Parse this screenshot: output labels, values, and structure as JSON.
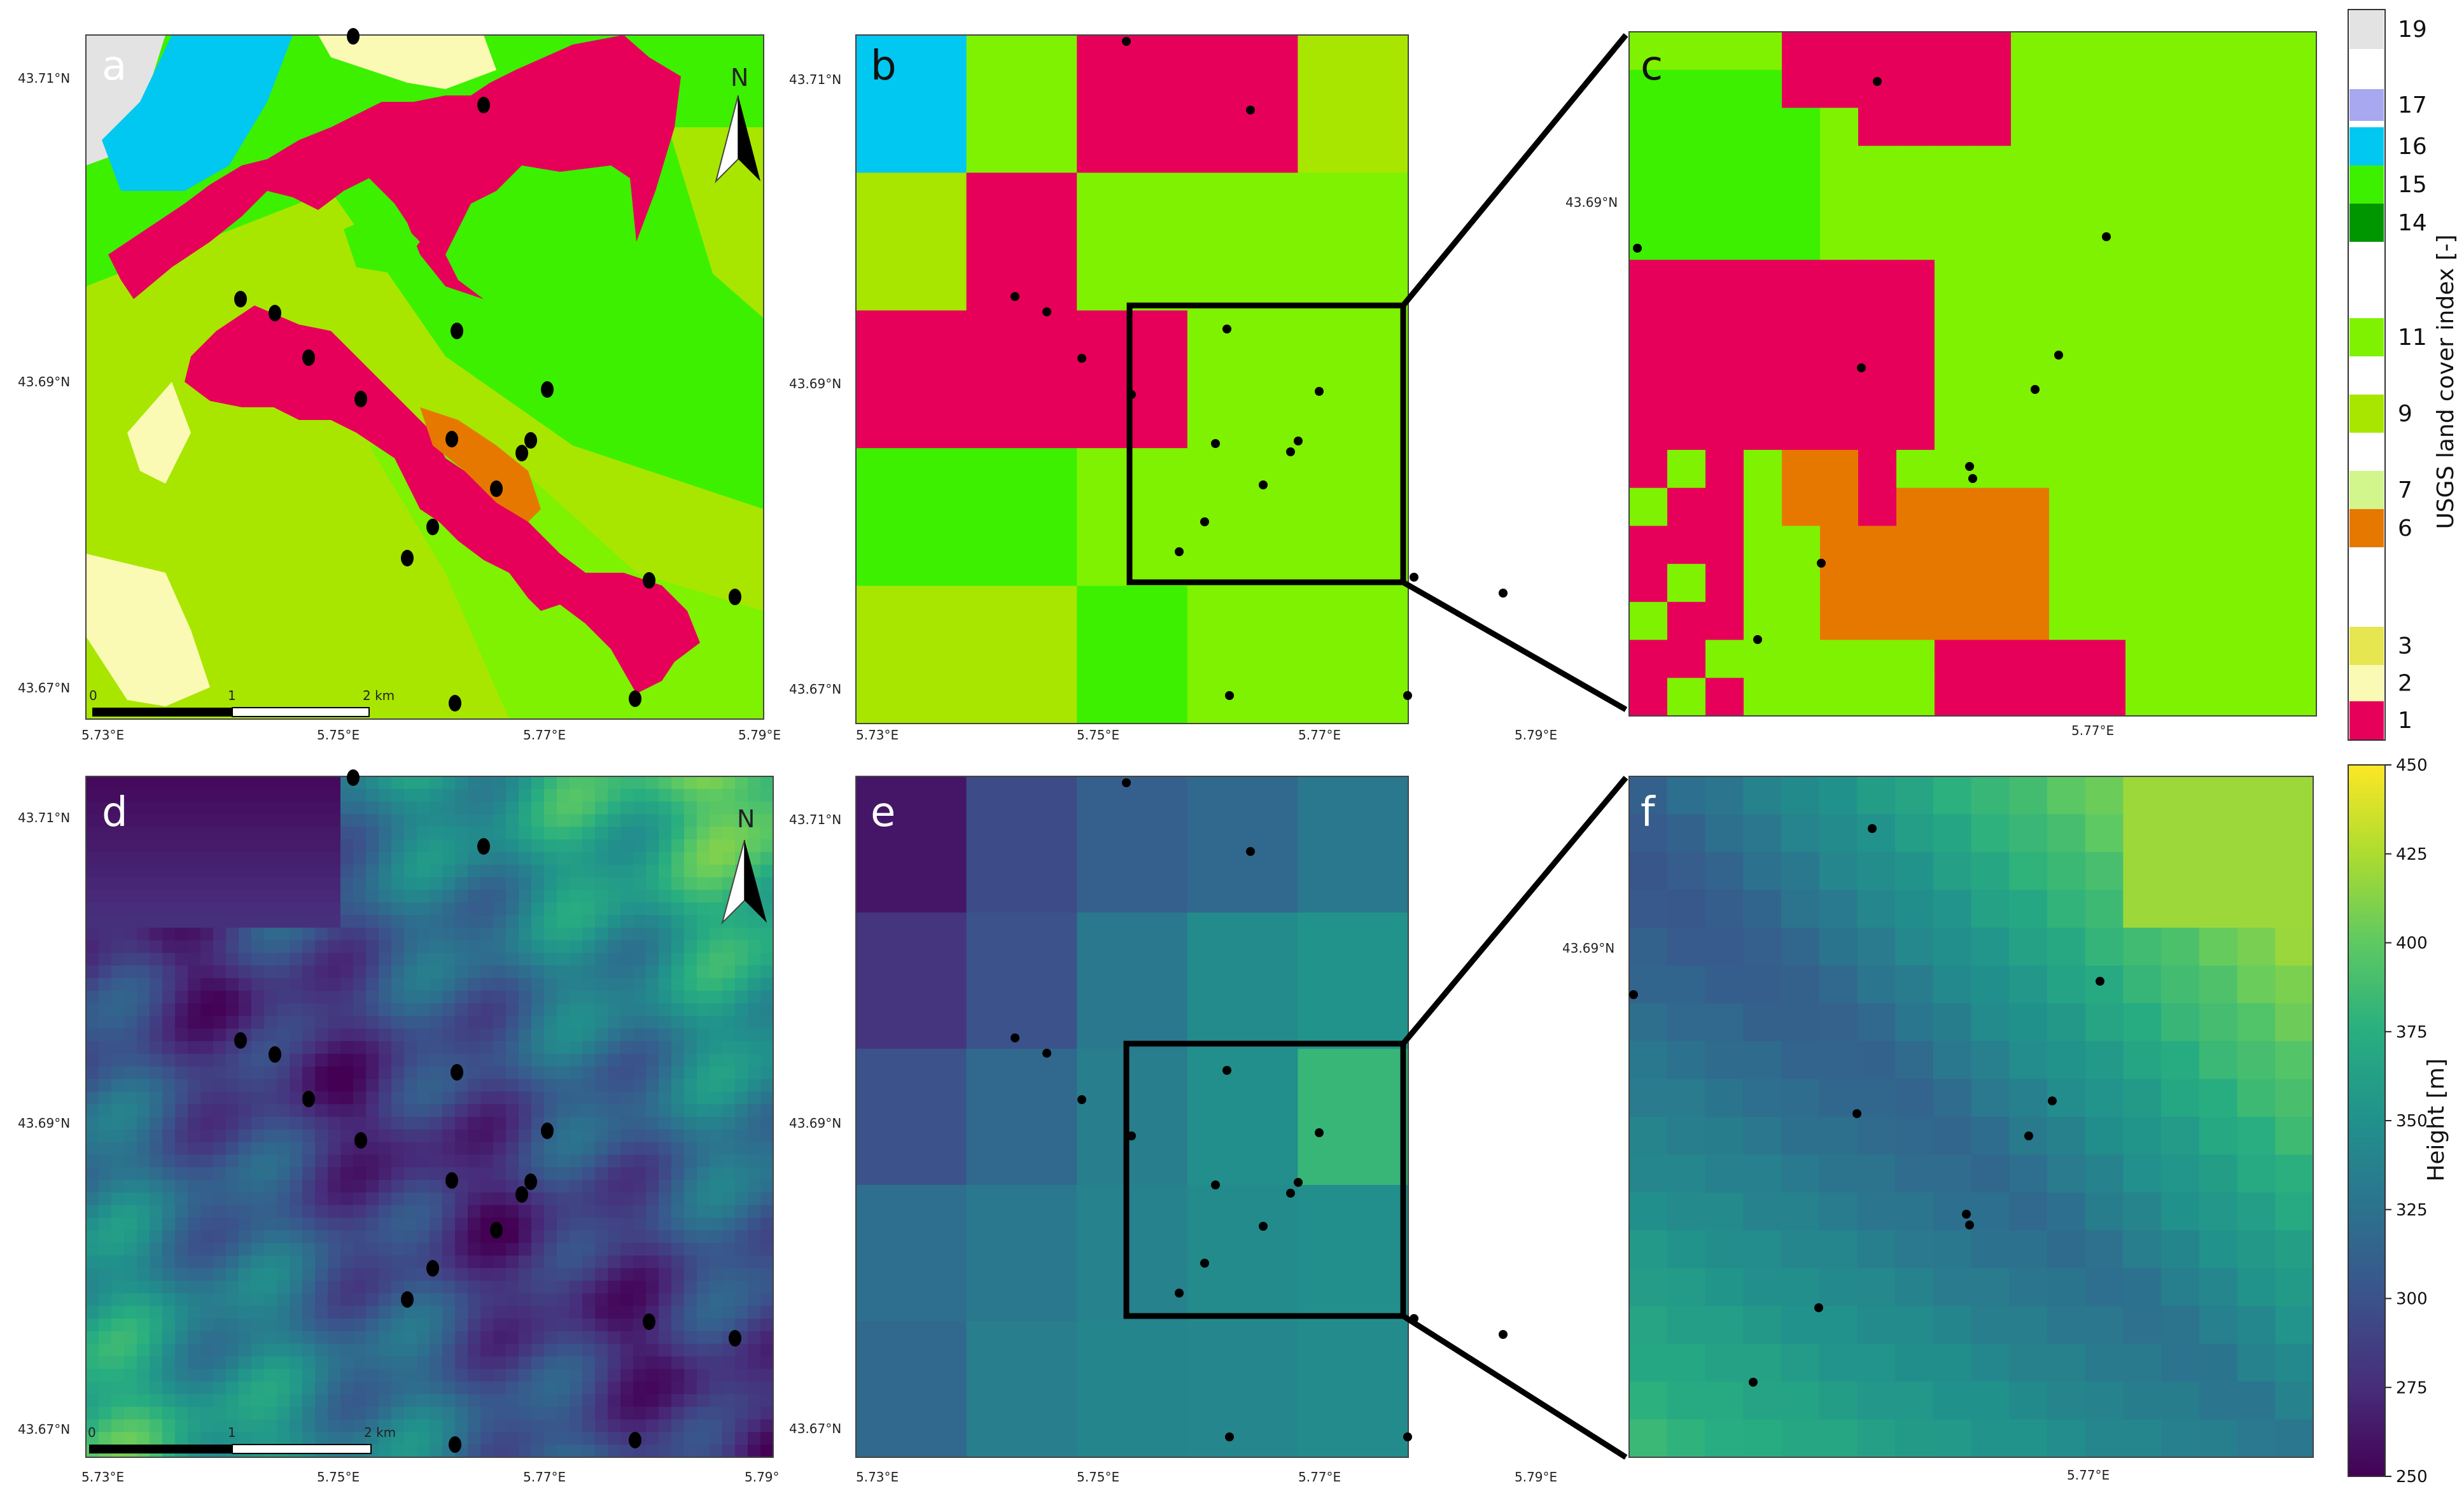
{
  "panels": [
    {
      "id": "a",
      "letter": "a",
      "kind": "landcover",
      "source": "map",
      "north": "N",
      "scale": [
        "0",
        "1",
        "2 km"
      ],
      "xticks": [
        "5.73°E",
        "5.75°E",
        "5.77°E",
        "5.79°E"
      ],
      "yticks": [
        "43.71°N",
        "43.69°N",
        "43.67°N"
      ]
    },
    {
      "id": "b",
      "letter": "b",
      "kind": "landcover",
      "source": "grid",
      "xticks": [
        "5.73°E",
        "5.75°E",
        "5.77°E",
        "5.79°E"
      ],
      "yticks": [
        "43.71°N",
        "43.69°N",
        "43.67°N"
      ]
    },
    {
      "id": "c",
      "letter": "c",
      "kind": "landcover",
      "source": "zoom",
      "xticks": [
        "5.77°E"
      ],
      "yticks": [
        "43.69°N"
      ]
    },
    {
      "id": "d",
      "letter": "d",
      "kind": "height",
      "source": "map",
      "north": "N",
      "scale": [
        "0",
        "1",
        "2 km"
      ],
      "xticks": [
        "5.73°E",
        "5.75°E",
        "5.77°E",
        "5.79°"
      ],
      "yticks": [
        "43.71°N",
        "43.69°N",
        "43.67°N"
      ]
    },
    {
      "id": "e",
      "letter": "e",
      "kind": "height",
      "source": "grid",
      "xticks": [
        "5.73°E",
        "5.75°E",
        "5.77°E",
        "5.79°E"
      ],
      "yticks": [
        "43.71°N",
        "43.69°N",
        "43.67°N"
      ]
    },
    {
      "id": "f",
      "letter": "f",
      "kind": "height",
      "source": "zoom",
      "xticks": [
        "5.77°E"
      ],
      "yticks": [
        "43.69°N"
      ]
    }
  ],
  "landcover_legend": {
    "title": "USGS land cover index [-]",
    "classes": [
      {
        "index": "19",
        "color": "#e3e3e3"
      },
      {
        "index": "17",
        "color": "#a8a8f0"
      },
      {
        "index": "16",
        "color": "#00c8f0"
      },
      {
        "index": "15",
        "color": "#3cf000"
      },
      {
        "index": "14",
        "color": "#009600"
      },
      {
        "index": "11",
        "color": "#7ef200"
      },
      {
        "index": "9",
        "color": "#a8e600"
      },
      {
        "index": "7",
        "color": "#d2f58c"
      },
      {
        "index": "6",
        "color": "#e67800"
      },
      {
        "index": "3",
        "color": "#e6e650"
      },
      {
        "index": "2",
        "color": "#fafab4"
      },
      {
        "index": "1",
        "color": "#e6005a"
      }
    ]
  },
  "height_colorbar": {
    "title": "Height [m]",
    "ticks": [
      "450",
      "425",
      "400",
      "375",
      "350",
      "325",
      "300",
      "275",
      "250"
    ],
    "range": [
      250,
      450
    ]
  },
  "colors": {
    "urban": "#e6005a",
    "forest": "#3cf000",
    "shrub": "#7ef200",
    "grass": "#a8e600",
    "orange": "#e67800",
    "water": "#00c8f0",
    "pale": "#fafab4",
    "bare": "#e3e3e3"
  },
  "landcover_grid_b": [
    [
      "16",
      "11",
      "1",
      "1",
      "9"
    ],
    [
      "9",
      "1",
      "11",
      "11",
      "11"
    ],
    [
      "1",
      "1",
      "1",
      "11",
      "11"
    ],
    [
      "15",
      "15",
      "11",
      "11",
      "11"
    ],
    [
      "9",
      "9",
      "15",
      "11",
      "11"
    ]
  ],
  "height_grid_e": [
    [
      262,
      296,
      310,
      318,
      330
    ],
    [
      280,
      300,
      330,
      345,
      352
    ],
    [
      300,
      318,
      335,
      348,
      382
    ],
    [
      322,
      330,
      338,
      345,
      348
    ],
    [
      318,
      335,
      340,
      342,
      345
    ]
  ]
}
